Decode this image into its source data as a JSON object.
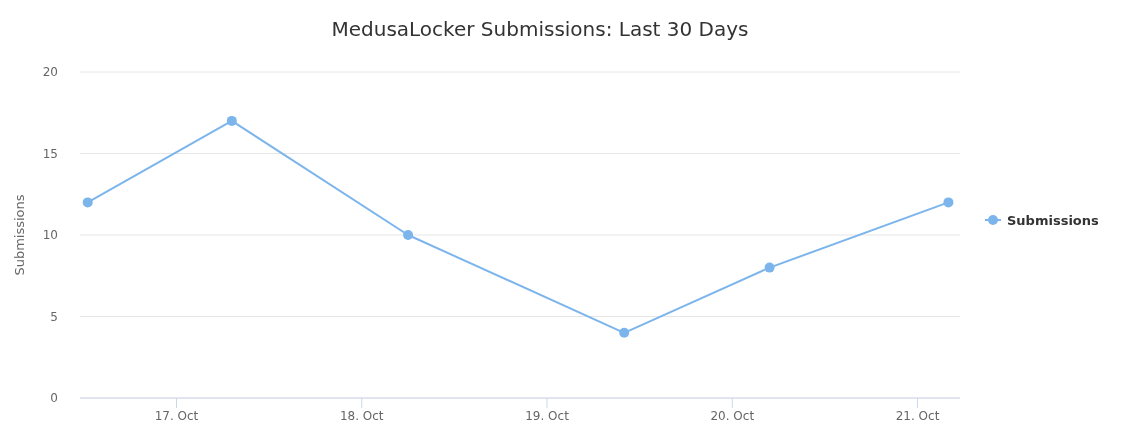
{
  "chart_data": {
    "type": "line",
    "title": "MedusaLocker Submissions: Last 30 Days",
    "ylabel": "Submissions",
    "x": [
      "--10-16T12:30",
      "--10-17T07:10",
      "--10-18T06:00",
      "--10-19T10:00",
      "--10-20T04:50",
      "--10-21T04:00"
    ],
    "series": [
      {
        "name": "Submissions",
        "color": "#7cb5ec",
        "values": [
          12,
          17,
          10,
          4,
          8,
          12
        ]
      }
    ],
    "xlim": [
      "--10-16T11:30",
      "--10-21T05:30"
    ],
    "xticks": [
      {
        "value": "--10-17",
        "label": "17. Oct"
      },
      {
        "value": "--10-18",
        "label": "18. Oct"
      },
      {
        "value": "--10-19",
        "label": "19. Oct"
      },
      {
        "value": "--10-20",
        "label": "20. Oct"
      },
      {
        "value": "--10-21",
        "label": "21. Oct"
      }
    ],
    "ylim": [
      0,
      20
    ],
    "yticks": [
      0,
      5,
      10,
      15,
      20
    ],
    "grid": "y",
    "legend": "right",
    "marker": "circle",
    "line_style": "solid"
  }
}
